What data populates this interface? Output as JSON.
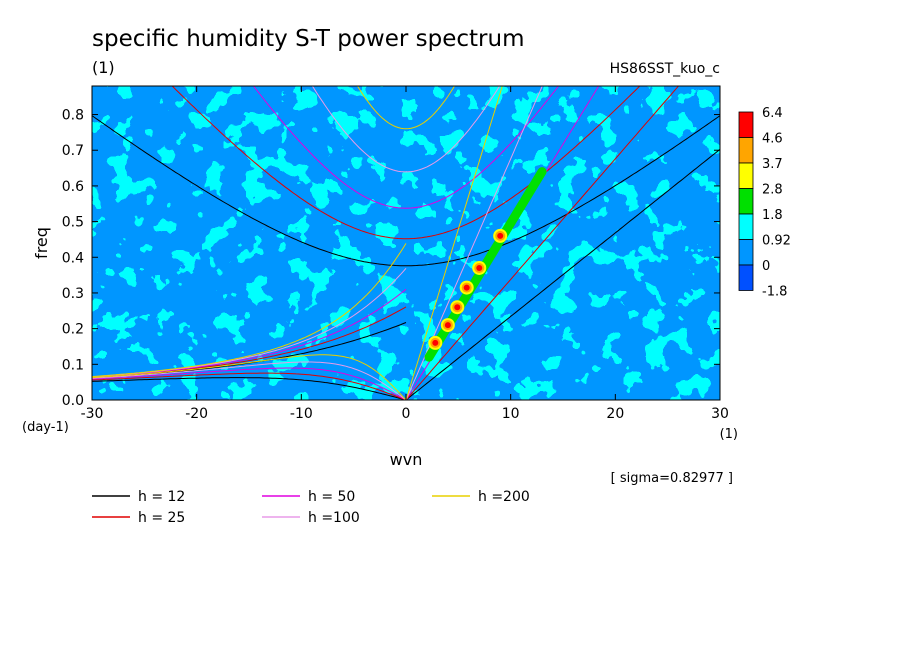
{
  "chart_data": {
    "type": "heatmap",
    "title": "specific humidity S-T power spectrum",
    "subtitle": "(1)",
    "run_label": "HS86SST_kuo_c",
    "xlabel": "wvn",
    "ylabel": "freq",
    "x_unit": "(1)",
    "y_unit": "(day-1)",
    "xlim": [
      -30,
      30
    ],
    "ylim": [
      0,
      0.88
    ],
    "xticks": [
      -30,
      -20,
      -10,
      0,
      10,
      20,
      30
    ],
    "yticks": [
      0.0,
      0.1,
      0.2,
      0.3,
      0.4,
      0.5,
      0.6,
      0.7,
      0.8
    ],
    "colorbar": {
      "levels": [
        "6.4",
        "4.6",
        "3.7",
        "2.8",
        "1.8",
        "0.92",
        "0",
        "-1.8"
      ],
      "colors": [
        "#ff0000",
        "#ffa500",
        "#ffff00",
        "#00e000",
        "#00ffff",
        "#0096ff",
        "#0050ff"
      ]
    },
    "background_color": "#0096ff",
    "sigma_text": "[ sigma=0.82977 ]",
    "dispersion_curves": [
      {
        "h": 12,
        "label": "h = 12",
        "color": "#000000"
      },
      {
        "h": 25,
        "label": "h = 25",
        "color": "#e00000"
      },
      {
        "h": 50,
        "label": "h = 50",
        "color": "#e000e0"
      },
      {
        "h": 100,
        "label": "h =100",
        "color": "#e89be8"
      },
      {
        "h": 200,
        "label": "h =200",
        "color": "#e8d000"
      }
    ],
    "kelvin_peak_points": [
      {
        "wvn": 2.8,
        "freq": 0.16
      },
      {
        "wvn": 4.0,
        "freq": 0.21
      },
      {
        "wvn": 4.9,
        "freq": 0.26
      },
      {
        "wvn": 5.8,
        "freq": 0.315
      },
      {
        "wvn": 7.0,
        "freq": 0.37
      },
      {
        "wvn": 9.0,
        "freq": 0.46
      }
    ]
  }
}
